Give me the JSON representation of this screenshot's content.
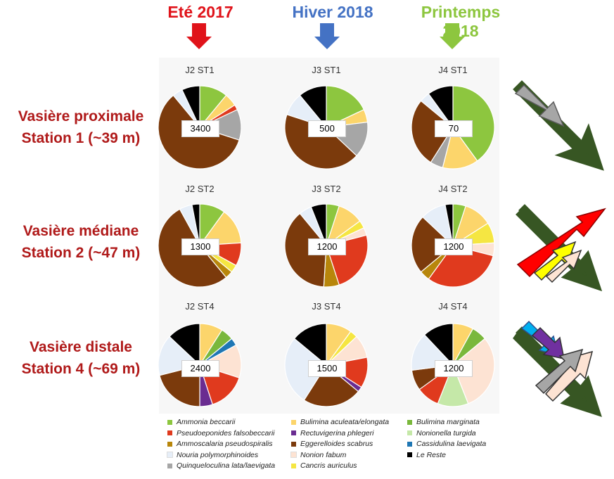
{
  "seasons": [
    {
      "label": "Eté 2017",
      "color": "#e0131a"
    },
    {
      "label": "Hiver 2018",
      "color": "#4472c4"
    },
    {
      "label": "Printemps 2018",
      "color": "#8dc63f"
    }
  ],
  "rows": [
    {
      "line1": "Vasière proximale",
      "line2": "Station 1 (~39 m)"
    },
    {
      "line1": "Vasière médiane",
      "line2": "Station 2 (~47 m)"
    },
    {
      "line1": "Vasière distale",
      "line2": "Station 4 (~69 m)"
    }
  ],
  "chart_data": {
    "type": "pie",
    "species": [
      {
        "name": "Ammonia beccarii",
        "color": "#8dc63f"
      },
      {
        "name": "Bulimina aculeata/elongata",
        "color": "#fcd56b"
      },
      {
        "name": "Bulimina marginata",
        "color": "#7ab83c"
      },
      {
        "name": "Pseudoeponides falsobeccarii",
        "color": "#e03a1e"
      },
      {
        "name": "Rectuvigerina phlegeri",
        "color": "#6a2c91"
      },
      {
        "name": "Nonionella turgida",
        "color": "#c5e8a8"
      },
      {
        "name": "Ammoscalaria pseudospiralis",
        "color": "#b8860b"
      },
      {
        "name": "Eggerelloides scabrus",
        "color": "#7b3a0c"
      },
      {
        "name": "Cassidulina laevigata",
        "color": "#1f77b4"
      },
      {
        "name": "Nouria polymorphinoides",
        "color": "#e6eef8"
      },
      {
        "name": "Nonion fabum",
        "color": "#fde3d3"
      },
      {
        "name": "Le Reste",
        "color": "#000000"
      },
      {
        "name": "Quinqueloculina lata/laevigata",
        "color": "#a6a6a6"
      },
      {
        "name": "Cancris auriculus",
        "color": "#f5e642"
      }
    ],
    "pies": [
      {
        "title": "J2 ST1",
        "count": "3400",
        "slices": [
          {
            "species": "Ammonia beccarii",
            "value": 11
          },
          {
            "species": "Bulimina aculeata/elongata",
            "value": 5
          },
          {
            "species": "Pseudoeponides falsobeccarii",
            "value": 2
          },
          {
            "species": "Quinqueloculina lata/laevigata",
            "value": 12
          },
          {
            "species": "Eggerelloides scabrus",
            "value": 59
          },
          {
            "species": "Nouria polymorphinoides",
            "value": 4
          },
          {
            "species": "Le Reste",
            "value": 7
          }
        ]
      },
      {
        "title": "J3 ST1",
        "count": "500",
        "slices": [
          {
            "species": "Ammonia beccarii",
            "value": 18
          },
          {
            "species": "Bulimina aculeata/elongata",
            "value": 5
          },
          {
            "species": "Quinqueloculina lata/laevigata",
            "value": 14
          },
          {
            "species": "Eggerelloides scabrus",
            "value": 43
          },
          {
            "species": "Nouria polymorphinoides",
            "value": 9
          },
          {
            "species": "Le Reste",
            "value": 11
          }
        ]
      },
      {
        "title": "J4 ST1",
        "count": "70",
        "slices": [
          {
            "species": "Ammonia beccarii",
            "value": 40
          },
          {
            "species": "Bulimina aculeata/elongata",
            "value": 14
          },
          {
            "species": "Quinqueloculina lata/laevigata",
            "value": 5
          },
          {
            "species": "Eggerelloides scabrus",
            "value": 27
          },
          {
            "species": "Nouria polymorphinoides",
            "value": 4
          },
          {
            "species": "Le Reste",
            "value": 10
          }
        ]
      },
      {
        "title": "J2 ST2",
        "count": "1300",
        "slices": [
          {
            "species": "Ammonia beccarii",
            "value": 10
          },
          {
            "species": "Bulimina aculeata/elongata",
            "value": 14
          },
          {
            "species": "Pseudoeponides falsobeccarii",
            "value": 9
          },
          {
            "species": "Cancris auriculus",
            "value": 3
          },
          {
            "species": "Ammoscalaria pseudospiralis",
            "value": 3
          },
          {
            "species": "Eggerelloides scabrus",
            "value": 53
          },
          {
            "species": "Nouria polymorphinoides",
            "value": 5
          },
          {
            "species": "Le Reste",
            "value": 3
          }
        ]
      },
      {
        "title": "J3 ST2",
        "count": "1200",
        "slices": [
          {
            "species": "Ammonia beccarii",
            "value": 5
          },
          {
            "species": "Bulimina aculeata/elongata",
            "value": 10
          },
          {
            "species": "Cancris auriculus",
            "value": 3
          },
          {
            "species": "Nonion fabum",
            "value": 3
          },
          {
            "species": "Pseudoeponides falsobeccarii",
            "value": 24
          },
          {
            "species": "Ammoscalaria pseudospiralis",
            "value": 6
          },
          {
            "species": "Eggerelloides scabrus",
            "value": 38
          },
          {
            "species": "Nouria polymorphinoides",
            "value": 5
          },
          {
            "species": "Le Reste",
            "value": 6
          }
        ]
      },
      {
        "title": "J4 ST2",
        "count": "1200",
        "slices": [
          {
            "species": "Ammonia beccarii",
            "value": 5
          },
          {
            "species": "Bulimina aculeata/elongata",
            "value": 11
          },
          {
            "species": "Cancris auriculus",
            "value": 8
          },
          {
            "species": "Nonion fabum",
            "value": 5
          },
          {
            "species": "Pseudoeponides falsobeccarii",
            "value": 31
          },
          {
            "species": "Ammoscalaria pseudospiralis",
            "value": 4
          },
          {
            "species": "Eggerelloides scabrus",
            "value": 23
          },
          {
            "species": "Nouria polymorphinoides",
            "value": 10
          },
          {
            "species": "Le Reste",
            "value": 3
          }
        ]
      },
      {
        "title": "J2 ST4",
        "count": "2400",
        "slices": [
          {
            "species": "Bulimina aculeata/elongata",
            "value": 9
          },
          {
            "species": "Bulimina marginata",
            "value": 5
          },
          {
            "species": "Cassidulina laevigata",
            "value": 3
          },
          {
            "species": "Nonion fabum",
            "value": 13
          },
          {
            "species": "Pseudoeponides falsobeccarii",
            "value": 15
          },
          {
            "species": "Rectuvigerina phlegeri",
            "value": 5
          },
          {
            "species": "Eggerelloides scabrus",
            "value": 21
          },
          {
            "species": "Nouria polymorphinoides",
            "value": 16
          },
          {
            "species": "Le Reste",
            "value": 13
          }
        ]
      },
      {
        "title": "J3 ST4",
        "count": "1500",
        "slices": [
          {
            "species": "Bulimina aculeata/elongata",
            "value": 10
          },
          {
            "species": "Cancris auriculus",
            "value": 3
          },
          {
            "species": "Nonion fabum",
            "value": 9
          },
          {
            "species": "Pseudoeponides falsobeccarii",
            "value": 12
          },
          {
            "species": "Rectuvigerina phlegeri",
            "value": 2
          },
          {
            "species": "Eggerelloides scabrus",
            "value": 23
          },
          {
            "species": "Nouria polymorphinoides",
            "value": 27
          },
          {
            "species": "Le Reste",
            "value": 14
          }
        ]
      },
      {
        "title": "J4 ST4",
        "count": "1200",
        "slices": [
          {
            "species": "Bulimina aculeata/elongata",
            "value": 8
          },
          {
            "species": "Bulimina marginata",
            "value": 6
          },
          {
            "species": "Nonion fabum",
            "value": 30
          },
          {
            "species": "Nonionella turgida",
            "value": 12
          },
          {
            "species": "Pseudoeponides falsobeccarii",
            "value": 9
          },
          {
            "species": "Eggerelloides scabrus",
            "value": 8
          },
          {
            "species": "Nouria polymorphinoides",
            "value": 15
          },
          {
            "species": "Le Reste",
            "value": 12
          }
        ]
      }
    ]
  },
  "arrow_colors": {
    "dark_green": "#375623",
    "gray": "#a6a6a6",
    "red": "#ff0000",
    "yellow": "#ffff00",
    "peach": "#fde3d3",
    "blue": "#00b0f0",
    "purple": "#7030a0"
  }
}
